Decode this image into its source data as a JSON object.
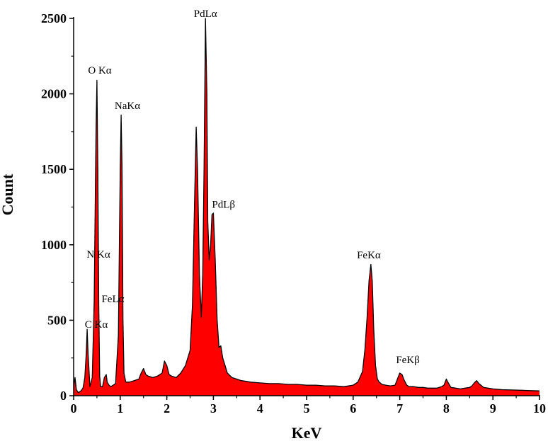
{
  "chart_data": {
    "type": "area",
    "title": "",
    "xlabel": "KeV",
    "ylabel": "Count",
    "xlim": [
      0,
      10
    ],
    "ylim": [
      0,
      2500
    ],
    "xticks": [
      0,
      1,
      2,
      3,
      4,
      5,
      6,
      7,
      8,
      9,
      10
    ],
    "yticks": [
      0,
      500,
      1000,
      1500,
      2000,
      2500
    ],
    "grid": false,
    "fill_color": "#ff0000",
    "line_color": "#000000",
    "spectrum": {
      "x": [
        0.0,
        0.03,
        0.06,
        0.1,
        0.15,
        0.2,
        0.24,
        0.27,
        0.29,
        0.31,
        0.35,
        0.4,
        0.44,
        0.48,
        0.5,
        0.52,
        0.54,
        0.56,
        0.58,
        0.62,
        0.66,
        0.7,
        0.72,
        0.76,
        0.8,
        0.85,
        0.9,
        0.96,
        1.0,
        1.02,
        1.04,
        1.06,
        1.08,
        1.12,
        1.2,
        1.3,
        1.4,
        1.45,
        1.5,
        1.55,
        1.6,
        1.7,
        1.8,
        1.9,
        1.95,
        2.0,
        2.05,
        2.1,
        2.2,
        2.3,
        2.4,
        2.5,
        2.55,
        2.6,
        2.63,
        2.66,
        2.7,
        2.74,
        2.77,
        2.8,
        2.83,
        2.86,
        2.88,
        2.91,
        2.94,
        2.97,
        3.0,
        3.04,
        3.08,
        3.12,
        3.16,
        3.2,
        3.25,
        3.3,
        3.4,
        3.5,
        3.6,
        3.7,
        3.8,
        4.0,
        4.2,
        4.4,
        4.6,
        4.8,
        5.0,
        5.2,
        5.4,
        5.6,
        5.8,
        6.0,
        6.1,
        6.2,
        6.25,
        6.3,
        6.34,
        6.38,
        6.41,
        6.44,
        6.48,
        6.52,
        6.56,
        6.62,
        6.7,
        6.8,
        6.9,
        6.95,
        7.0,
        7.05,
        7.1,
        7.15,
        7.2,
        7.3,
        7.4,
        7.5,
        7.6,
        7.7,
        7.8,
        7.9,
        7.95,
        8.0,
        8.05,
        8.1,
        8.2,
        8.3,
        8.4,
        8.5,
        8.55,
        8.6,
        8.65,
        8.7,
        8.8,
        9.0,
        9.2,
        9.4,
        9.6,
        9.8,
        10.0
      ],
      "y": [
        60,
        120,
        40,
        20,
        30,
        50,
        120,
        280,
        440,
        280,
        60,
        120,
        620,
        1750,
        2090,
        1500,
        600,
        130,
        60,
        60,
        120,
        140,
        90,
        70,
        60,
        70,
        80,
        400,
        1500,
        1860,
        1500,
        500,
        150,
        90,
        90,
        100,
        110,
        150,
        180,
        140,
        130,
        120,
        130,
        150,
        230,
        200,
        140,
        130,
        120,
        150,
        200,
        300,
        600,
        1350,
        1780,
        1500,
        800,
        520,
        800,
        1500,
        2500,
        2000,
        1150,
        900,
        1000,
        1200,
        1210,
        900,
        500,
        320,
        330,
        250,
        200,
        150,
        120,
        110,
        100,
        95,
        90,
        85,
        80,
        80,
        75,
        75,
        70,
        70,
        65,
        65,
        60,
        70,
        90,
        160,
        300,
        520,
        760,
        870,
        760,
        450,
        200,
        110,
        90,
        75,
        70,
        65,
        70,
        110,
        150,
        140,
        100,
        70,
        60,
        60,
        55,
        55,
        50,
        50,
        50,
        60,
        70,
        110,
        80,
        55,
        50,
        45,
        50,
        55,
        65,
        85,
        100,
        80,
        55,
        45,
        40,
        38,
        36,
        34,
        32
      ]
    },
    "annotations": [
      {
        "text": "PdLα",
        "x": 2.83,
        "y": 2510,
        "anchor": "middle"
      },
      {
        "text": "O Kα",
        "x": 0.31,
        "y": 2135,
        "anchor": "start"
      },
      {
        "text": "NaKα",
        "x": 0.88,
        "y": 1900,
        "anchor": "start"
      },
      {
        "text": "PdLβ",
        "x": 2.97,
        "y": 1245,
        "anchor": "start"
      },
      {
        "text": "N Kα",
        "x": 0.28,
        "y": 915,
        "anchor": "start"
      },
      {
        "text": "FeKα",
        "x": 6.08,
        "y": 910,
        "anchor": "start"
      },
      {
        "text": "FeLα",
        "x": 0.6,
        "y": 620,
        "anchor": "start"
      },
      {
        "text": "C Kα",
        "x": 0.24,
        "y": 450,
        "anchor": "start"
      },
      {
        "text": "FeKβ",
        "x": 6.92,
        "y": 215,
        "anchor": "start"
      }
    ]
  }
}
